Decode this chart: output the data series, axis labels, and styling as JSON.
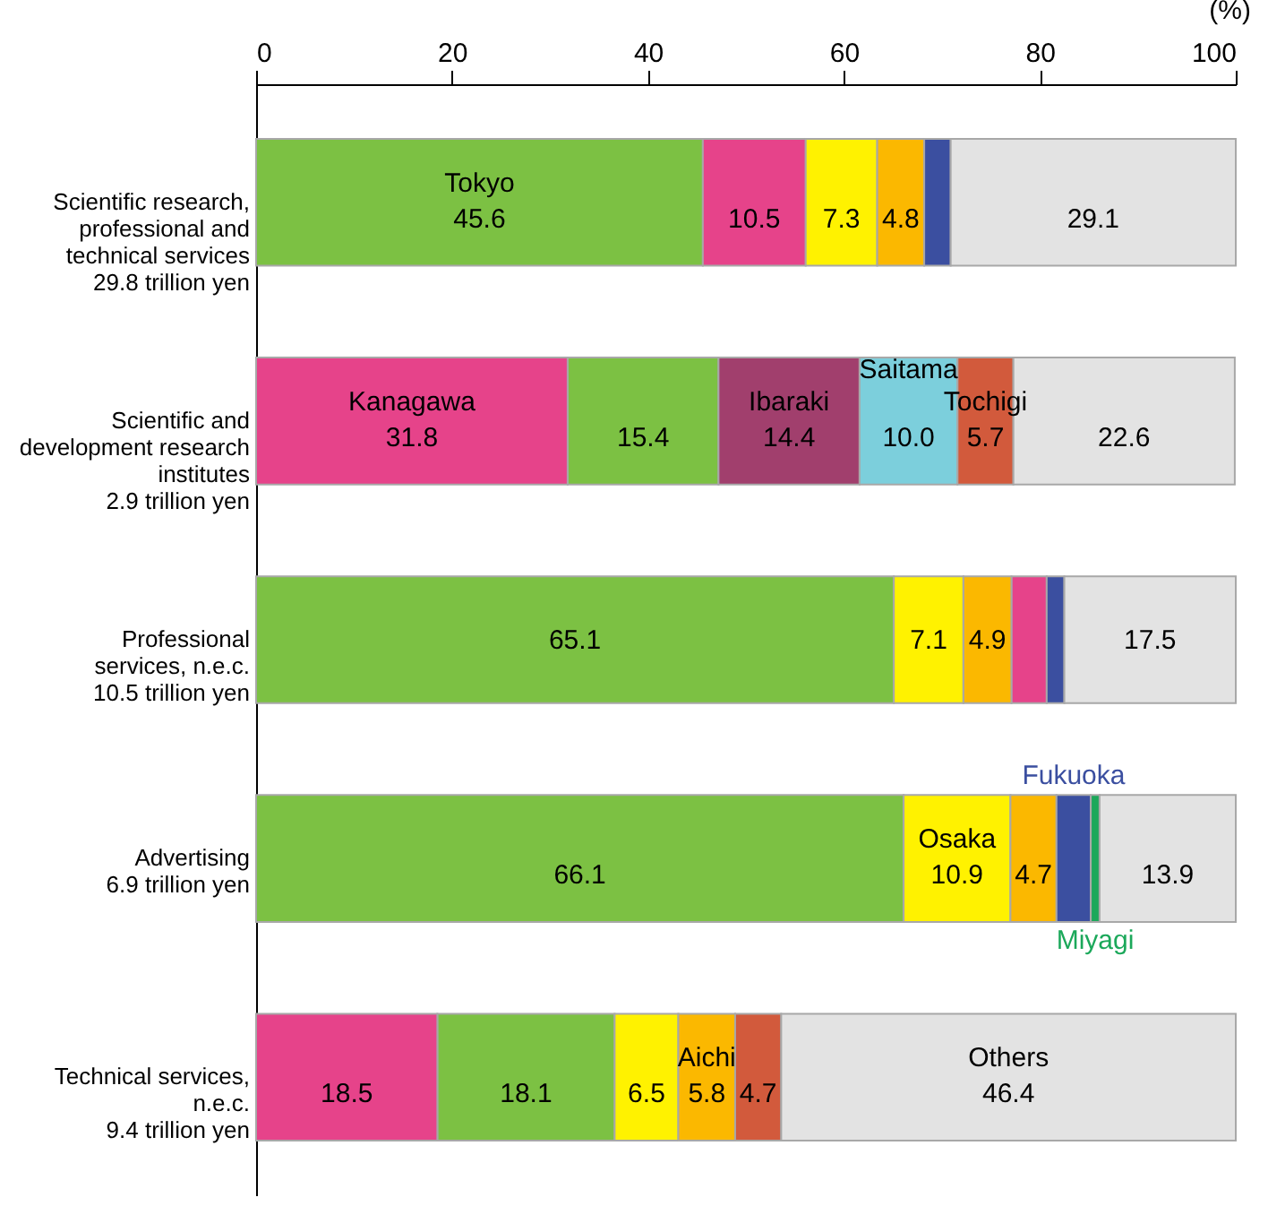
{
  "chart_data": {
    "type": "bar",
    "orientation": "horizontal",
    "xlabel": "(%)",
    "xlim": [
      0,
      100
    ],
    "xticks": [
      0,
      20,
      40,
      60,
      80,
      100
    ],
    "grid": false,
    "categories": [
      "Scientific research, professional and technical services 29.8 trillion yen",
      "Scientific and development research institutes 2.9 trillion yen",
      "Professional services, n.e.c. 10.5 trillion yen",
      "Advertising 6.9 trillion yen",
      "Technical services, n.e.c. 9.4 trillion yen"
    ],
    "series": [
      {
        "name": "Tokyo",
        "color": "#7cc143",
        "values": [
          45.6,
          null,
          null,
          null,
          null
        ],
        "base": [
          0,
          null,
          null,
          null,
          null
        ],
        "value_labels": [
          "45.6",
          null,
          null,
          null,
          null
        ]
      },
      {
        "color": "#7cc143",
        "values": [
          null,
          15.4,
          65.1,
          66.1,
          18.1
        ],
        "base": [
          null,
          31.8,
          0,
          0,
          18.5
        ],
        "value_labels": [
          null,
          "15.4",
          "65.1",
          "66.1",
          "18.1"
        ]
      },
      {
        "name": "Kanagawa",
        "color": "#e6438a",
        "values": [
          null,
          31.8,
          null,
          null,
          null
        ],
        "base": [
          null,
          0,
          null,
          null,
          null
        ],
        "value_labels": [
          null,
          "31.8",
          null,
          null,
          null
        ]
      },
      {
        "color": "#e6438a",
        "values": [
          10.5,
          null,
          3.6,
          null,
          18.5
        ],
        "base": [
          45.6,
          null,
          77.1,
          null,
          0
        ],
        "value_labels": [
          "10.5",
          null,
          null,
          null,
          "18.5"
        ]
      },
      {
        "name": "Osaka",
        "color": "#fff200",
        "values": [
          null,
          null,
          null,
          10.9,
          null
        ],
        "base": [
          null,
          null,
          null,
          66.1,
          null
        ],
        "value_labels": [
          null,
          null,
          null,
          "10.9",
          null
        ]
      },
      {
        "color": "#fff200",
        "values": [
          7.3,
          null,
          7.1,
          null,
          6.5
        ],
        "base": [
          56.1,
          null,
          65.1,
          null,
          36.6
        ],
        "value_labels": [
          "7.3",
          null,
          "7.1",
          null,
          "6.5"
        ]
      },
      {
        "name": "Aichi",
        "color": "#fbb800",
        "values": [
          null,
          null,
          null,
          null,
          5.8
        ],
        "base": [
          null,
          null,
          null,
          null,
          43.1
        ],
        "value_labels": [
          null,
          null,
          null,
          null,
          "5.8"
        ]
      },
      {
        "color": "#fbb800",
        "values": [
          4.8,
          null,
          4.9,
          4.7,
          null
        ],
        "base": [
          63.4,
          null,
          72.2,
          77.0,
          null
        ],
        "value_labels": [
          "4.8",
          null,
          "4.9",
          "4.7",
          null
        ]
      },
      {
        "name": "Fukuoka",
        "color": "#3b4fa0",
        "values": [
          null,
          null,
          null,
          3.5,
          null
        ],
        "base": [
          null,
          null,
          null,
          81.7,
          null
        ]
      },
      {
        "color": "#3b4fa0",
        "values": [
          2.7,
          null,
          1.8,
          null,
          null
        ],
        "base": [
          68.2,
          null,
          80.7,
          null,
          null
        ]
      },
      {
        "name": "Ibaraki",
        "color": "#a13f6d",
        "values": [
          null,
          14.4,
          null,
          null,
          null
        ],
        "base": [
          null,
          47.2,
          null,
          null,
          null
        ],
        "value_labels": [
          null,
          "14.4",
          null,
          null,
          null
        ]
      },
      {
        "name": "Saitama",
        "color": "#7ccfdc",
        "values": [
          null,
          10.0,
          null,
          null,
          null
        ],
        "base": [
          null,
          61.6,
          null,
          null,
          null
        ],
        "value_labels": [
          null,
          "10.0",
          null,
          null,
          null
        ]
      },
      {
        "name": "Tochigi",
        "color": "#d25a3c",
        "values": [
          null,
          5.7,
          null,
          null,
          null
        ],
        "base": [
          null,
          71.6,
          null,
          null,
          null
        ],
        "value_labels": [
          null,
          "5.7",
          null,
          null,
          null
        ]
      },
      {
        "color": "#d25a3c",
        "values": [
          null,
          null,
          null,
          null,
          4.7
        ],
        "base": [
          null,
          null,
          null,
          null,
          48.9
        ],
        "value_labels": [
          null,
          null,
          null,
          null,
          "4.7"
        ]
      },
      {
        "name": "Miyagi",
        "color": "#1ba85a",
        "values": [
          null,
          null,
          null,
          0.9,
          null
        ],
        "base": [
          null,
          null,
          null,
          85.2,
          null
        ]
      },
      {
        "name": "Others",
        "color": "#e3e3e3",
        "values": [
          null,
          null,
          null,
          null,
          46.4
        ],
        "base": [
          null,
          null,
          null,
          null,
          53.6
        ],
        "value_labels": [
          null,
          null,
          null,
          null,
          "46.4"
        ]
      },
      {
        "color": "#e3e3e3",
        "values": [
          29.1,
          22.6,
          17.5,
          13.9,
          null
        ],
        "base": [
          70.9,
          77.3,
          82.5,
          86.1,
          null
        ],
        "value_labels": [
          "29.1",
          "22.6",
          "17.5",
          "13.9",
          null
        ]
      }
    ]
  }
}
